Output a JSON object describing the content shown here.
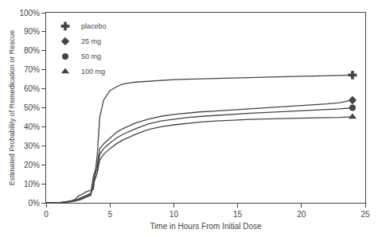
{
  "chart_data": {
    "type": "line",
    "xlabel": "Time in Hours From Initial Dose",
    "ylabel": "Estimated Probability of Remedication or Rescue",
    "xlim": [
      0,
      25
    ],
    "ylim": [
      0,
      1.0
    ],
    "xticks": [
      0,
      5,
      10,
      15,
      20,
      25
    ],
    "yticks": [
      {
        "value": 0.0,
        "label": "0%"
      },
      {
        "value": 0.1,
        "label": "10%"
      },
      {
        "value": 0.2,
        "label": "20%"
      },
      {
        "value": 0.3,
        "label": "30%"
      },
      {
        "value": 0.4,
        "label": "40%"
      },
      {
        "value": 0.5,
        "label": "50%"
      },
      {
        "value": 0.6,
        "label": "60%"
      },
      {
        "value": 0.7,
        "label": "70%"
      },
      {
        "value": 0.8,
        "label": "80%"
      },
      {
        "value": 0.9,
        "label": "90%"
      },
      {
        "value": 1.0,
        "label": "100%"
      }
    ],
    "grid": false,
    "legend": "upper left",
    "x": [
      0,
      1.0,
      1.5,
      2.0,
      2.3,
      2.5,
      2.7,
      3.0,
      3.2,
      3.5,
      3.7,
      4.0,
      4.2,
      4.5,
      5.0,
      5.5,
      6.0,
      7.0,
      8.0,
      9.0,
      10.0,
      11.0,
      12.0,
      13.0,
      14.0,
      15.0,
      16.0,
      17.0,
      18.0,
      19.0,
      20.0,
      21.0,
      22.0,
      23.0,
      24.0
    ],
    "series": [
      {
        "name": "placebo",
        "color": "#444444",
        "marker": "plus",
        "values": [
          0,
          0.0,
          0.005,
          0.01,
          0.02,
          0.035,
          0.04,
          0.05,
          0.06,
          0.065,
          0.07,
          0.25,
          0.45,
          0.54,
          0.59,
          0.61,
          0.625,
          0.635,
          0.64,
          0.645,
          0.648,
          0.65,
          0.652,
          0.655,
          0.657,
          0.659,
          0.661,
          0.663,
          0.664,
          0.665,
          0.666,
          0.667,
          0.668,
          0.669,
          0.672
        ]
      },
      {
        "name": "25 mg",
        "color": "#444444",
        "marker": "diamond",
        "values": [
          0,
          0.0,
          0.005,
          0.01,
          0.015,
          0.02,
          0.025,
          0.035,
          0.04,
          0.05,
          0.14,
          0.2,
          0.285,
          0.31,
          0.34,
          0.37,
          0.39,
          0.42,
          0.44,
          0.455,
          0.465,
          0.473,
          0.478,
          0.482,
          0.486,
          0.49,
          0.495,
          0.499,
          0.503,
          0.507,
          0.511,
          0.515,
          0.52,
          0.527,
          0.54
        ]
      },
      {
        "name": "50 mg",
        "color": "#444444",
        "marker": "circle",
        "values": [
          0,
          0.0,
          0.004,
          0.007,
          0.01,
          0.015,
          0.02,
          0.03,
          0.035,
          0.045,
          0.12,
          0.18,
          0.255,
          0.285,
          0.315,
          0.34,
          0.36,
          0.39,
          0.415,
          0.43,
          0.44,
          0.448,
          0.454,
          0.459,
          0.463,
          0.467,
          0.471,
          0.474,
          0.477,
          0.48,
          0.483,
          0.486,
          0.49,
          0.494,
          0.5
        ]
      },
      {
        "name": "100 mg",
        "color": "#444444",
        "marker": "triangle-up",
        "values": [
          0,
          0.0,
          0.003,
          0.006,
          0.009,
          0.012,
          0.016,
          0.025,
          0.03,
          0.04,
          0.1,
          0.155,
          0.225,
          0.255,
          0.285,
          0.31,
          0.33,
          0.36,
          0.385,
          0.4,
          0.41,
          0.418,
          0.424,
          0.429,
          0.433,
          0.436,
          0.439,
          0.441,
          0.443,
          0.445,
          0.446,
          0.447,
          0.448,
          0.449,
          0.452
        ]
      }
    ]
  }
}
